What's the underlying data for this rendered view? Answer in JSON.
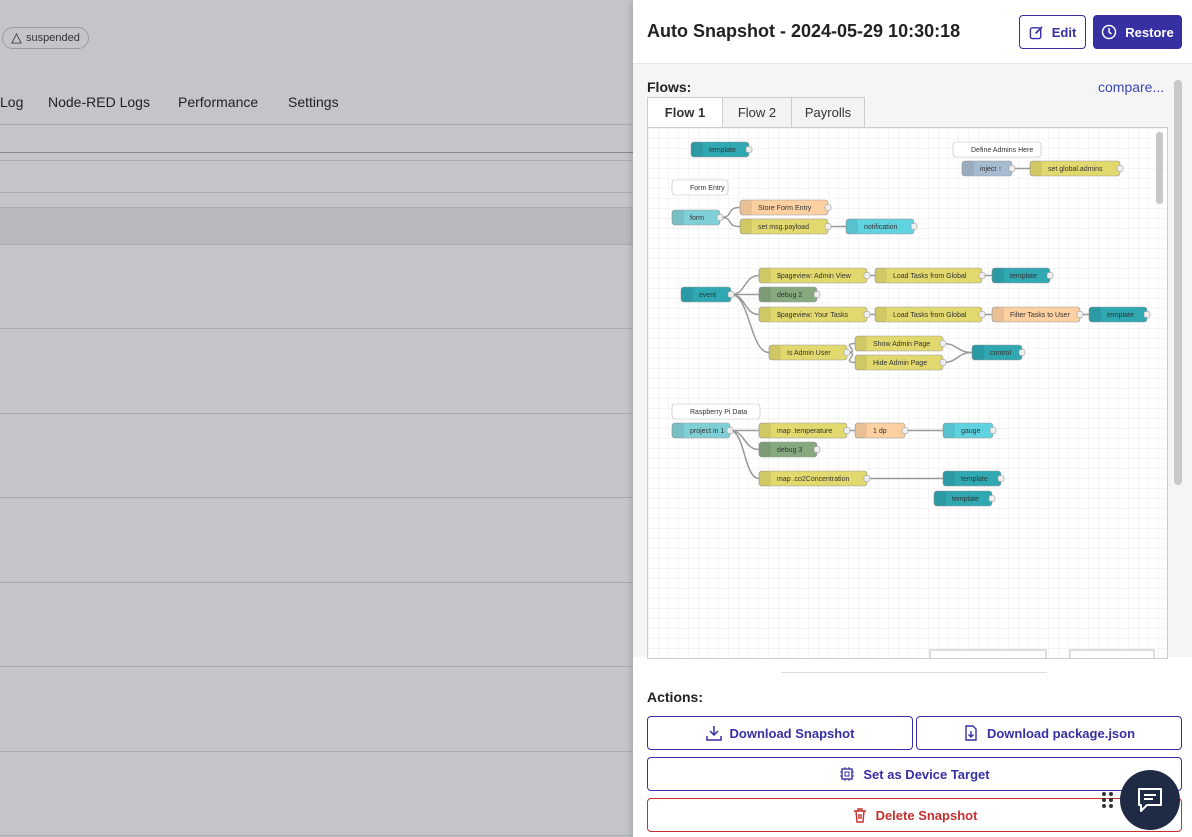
{
  "background": {
    "status": "suspended",
    "tabs": [
      "Log",
      "Node-RED Logs",
      "Performance",
      "Settings"
    ]
  },
  "panel": {
    "title": "Auto Snapshot - 2024-05-29 10:30:18",
    "edit": "Edit",
    "restore": "Restore",
    "flows_label": "Flows:",
    "compare": "compare...",
    "flow_tabs": [
      "Flow 1",
      "Flow 2",
      "Payrolls"
    ],
    "actions_label": "Actions:",
    "actions": [
      "Download Snapshot",
      "Download package.json",
      "Set as Device Target",
      "Delete Snapshot"
    ]
  },
  "nodes": [
    {
      "label": "template"
    },
    {
      "label": "Define Admins Here"
    },
    {
      "label": "inject ↑"
    },
    {
      "label": "set global.admins"
    },
    {
      "label": "Form Entry"
    },
    {
      "label": "form"
    },
    {
      "label": "Store Form Entry"
    },
    {
      "label": "set msg.payload"
    },
    {
      "label": "notification"
    },
    {
      "label": "event"
    },
    {
      "label": "$pageview: Admin View"
    },
    {
      "label": "Load Tasks from Global"
    },
    {
      "label": "template"
    },
    {
      "label": "debug 2"
    },
    {
      "label": "$pageview: Your Tasks"
    },
    {
      "label": "Load Tasks from Global"
    },
    {
      "label": "Filter Tasks to User"
    },
    {
      "label": "template"
    },
    {
      "label": "Show Admin Page"
    },
    {
      "label": "Is Admin User"
    },
    {
      "label": "Hide Admin Page"
    },
    {
      "label": "control"
    },
    {
      "label": "Raspberry Pi Data"
    },
    {
      "label": "project in 1"
    },
    {
      "label": "map .temperature"
    },
    {
      "label": "1 dp"
    },
    {
      "label": "gauge"
    },
    {
      "label": "debug 3"
    },
    {
      "label": "map .co2Concentration"
    },
    {
      "label": "template"
    },
    {
      "label": "template"
    }
  ]
}
